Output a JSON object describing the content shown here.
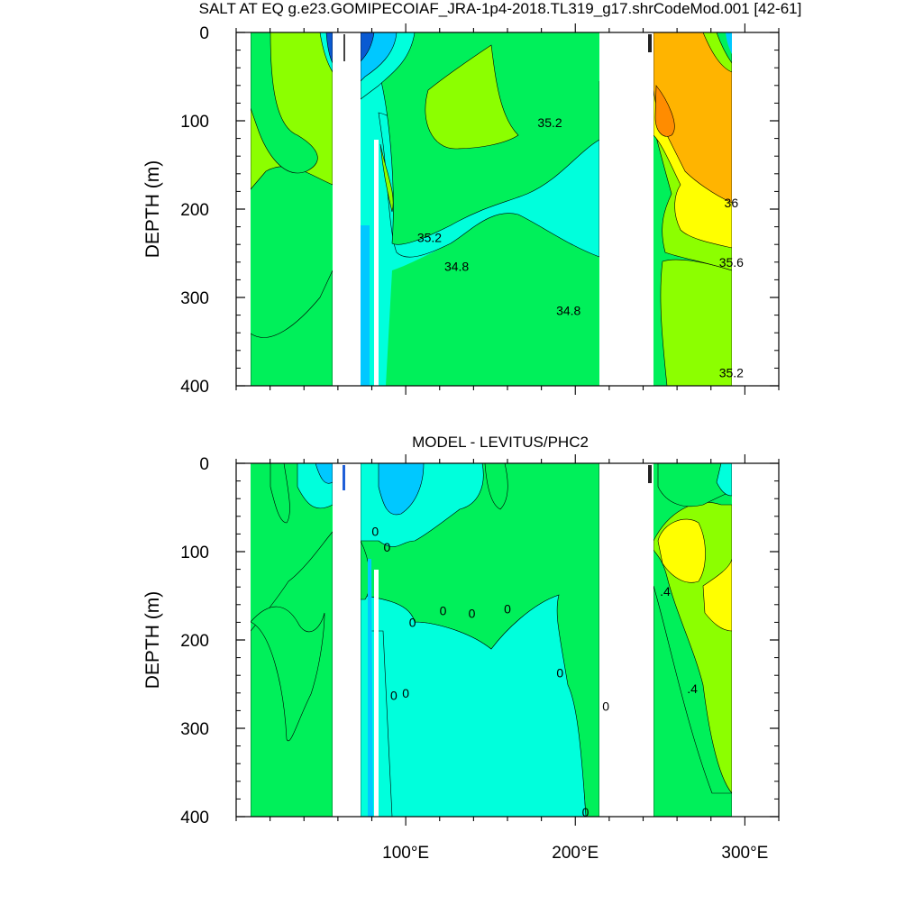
{
  "page_title": "SALT AT EQ g.e23.GOMIPECOIAF_JRA-1p4-2018.TL319_g17.shrCodeMod.001 [42-61]",
  "chart_data": [
    {
      "type": "contour",
      "title": "SALT AT EQ g.e23.GOMIPECOIAF_JRA-1p4-2018.TL319_g17.shrCodeMod.001 [42-61]",
      "ylabel": "DEPTH (m)",
      "xlabel": "",
      "xlim": [
        0,
        320
      ],
      "ylim": [
        400,
        0
      ],
      "y_ticks": [
        0,
        100,
        200,
        300,
        400
      ],
      "x_ticks": [
        100,
        200,
        300
      ],
      "x_tick_labels": [
        "",
        "",
        ""
      ],
      "contour_labels": [
        {
          "value": "35.2",
          "x": 185,
          "y": 102
        },
        {
          "value": "35.2",
          "x": 114,
          "y": 232
        },
        {
          "value": "34.8",
          "x": 130,
          "y": 265
        },
        {
          "value": "34.8",
          "x": 196,
          "y": 315
        },
        {
          "value": "36",
          "x": 292,
          "y": 193
        },
        {
          "value": "35.6",
          "x": 292,
          "y": 260
        },
        {
          "value": "35.2",
          "x": 292,
          "y": 385
        }
      ],
      "land_gaps": [
        [
          59,
          75
        ],
        [
          220,
          251
        ]
      ],
      "colors": {
        "fresh": "#0a5ad2",
        "cyan": "#00c8ff",
        "aqua": "#00ffdc",
        "green": "#00f05a",
        "lime": "#8cff00",
        "yellow": "#ffff00",
        "orange": "#ffb400"
      }
    },
    {
      "type": "contour",
      "title": "MODEL - LEVITUS/PHC2",
      "ylabel": "DEPTH (m)",
      "xlabel": "",
      "xlim": [
        0,
        320
      ],
      "ylim": [
        400,
        0
      ],
      "y_ticks": [
        0,
        100,
        200,
        300,
        400
      ],
      "x_ticks": [
        100,
        200,
        300
      ],
      "x_tick_labels": [
        "100°E",
        "200°E",
        "300°E"
      ],
      "contour_labels": [
        {
          "value": "0",
          "x": 82,
          "y": 77
        },
        {
          "value": "0",
          "x": 89,
          "y": 95
        },
        {
          "value": "0",
          "x": 104,
          "y": 180
        },
        {
          "value": "0",
          "x": 122,
          "y": 167
        },
        {
          "value": "0",
          "x": 139,
          "y": 170
        },
        {
          "value": "0",
          "x": 160,
          "y": 165
        },
        {
          "value": "0",
          "x": 191,
          "y": 237
        },
        {
          "value": "0",
          "x": 218,
          "y": 275
        },
        {
          "value": "0",
          "x": 93,
          "y": 263
        },
        {
          "value": "0",
          "x": 100,
          "y": 260
        },
        {
          "value": "0",
          "x": 206,
          "y": 395
        },
        {
          "value": ".4",
          "x": 253,
          "y": 145
        },
        {
          "value": ".4",
          "x": 269,
          "y": 255
        }
      ],
      "land_gaps": [
        [
          59,
          75
        ],
        [
          220,
          251
        ]
      ],
      "colors": {
        "minus": "#00c8ff",
        "aqua": "#00ffdc",
        "green": "#00f05a",
        "lime": "#8cff00",
        "yellow": "#ffff00"
      }
    }
  ]
}
